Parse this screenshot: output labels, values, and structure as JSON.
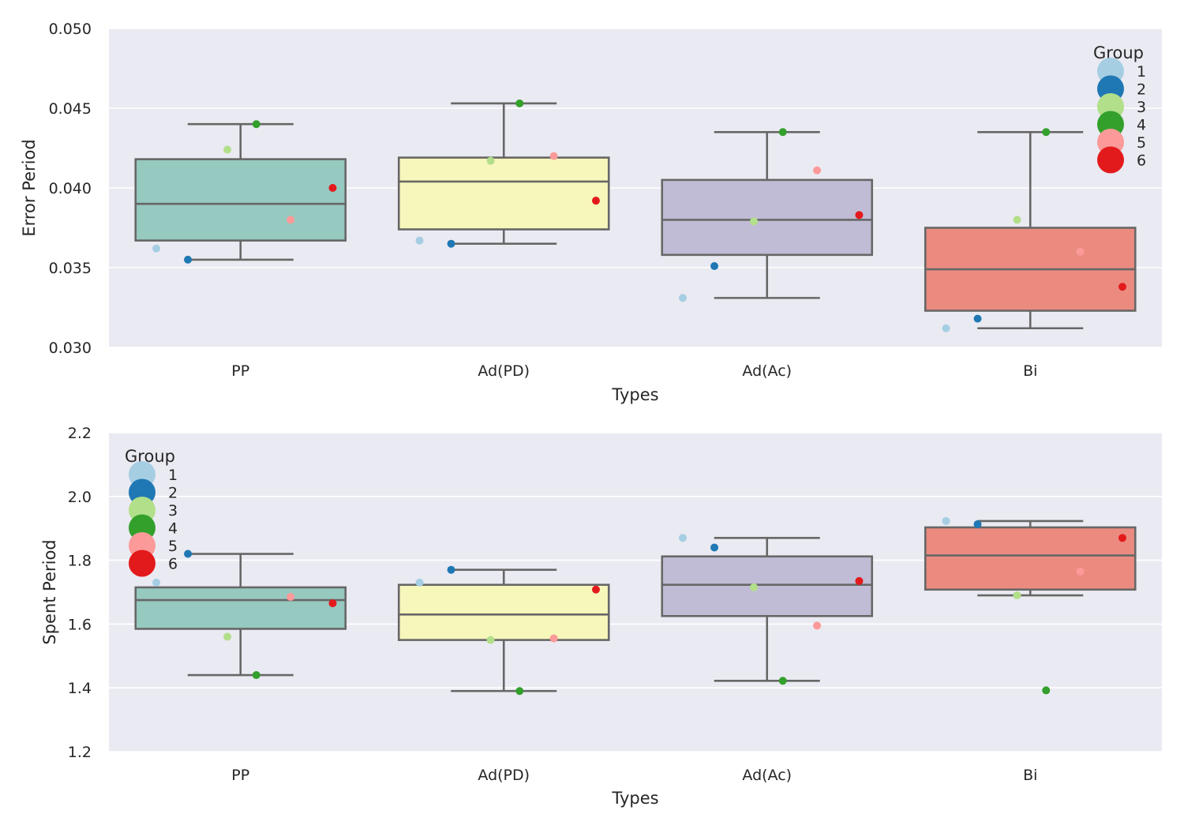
{
  "chart_data": [
    {
      "type": "box",
      "title": "",
      "xlabel": "Types",
      "ylabel": "Error Period",
      "ylim": [
        0.03,
        0.05
      ],
      "yticks": [
        "0.030",
        "0.035",
        "0.040",
        "0.045",
        "0.050"
      ],
      "categories": [
        "PP",
        "Ad(PD)",
        "Ad(Ac)",
        "Bi"
      ],
      "grid": true,
      "legend": {
        "title": "Group",
        "placement": "top-right",
        "labels": [
          "1",
          "2",
          "3",
          "4",
          "5",
          "6"
        ]
      },
      "boxes": [
        {
          "category": "PP",
          "q1": 0.0367,
          "median": 0.039,
          "q3": 0.0418,
          "whisker_low": 0.0355,
          "whisker_high": 0.044,
          "color": "#96c9c0"
        },
        {
          "category": "Ad(PD)",
          "q1": 0.0374,
          "median": 0.0404,
          "q3": 0.0419,
          "whisker_low": 0.0365,
          "whisker_high": 0.0453,
          "color": "#f7f6bb"
        },
        {
          "category": "Ad(Ac)",
          "q1": 0.0358,
          "median": 0.038,
          "q3": 0.0405,
          "whisker_low": 0.0331,
          "whisker_high": 0.0435,
          "color": "#c1bcd5"
        },
        {
          "category": "Bi",
          "q1": 0.0323,
          "median": 0.0349,
          "q3": 0.0375,
          "whisker_low": 0.0312,
          "whisker_high": 0.0435,
          "color": "#eb8b80"
        }
      ],
      "series": [
        {
          "name": "1",
          "color": "#a6cee3",
          "values": [
            0.0362,
            0.0367,
            0.0331,
            0.0312
          ]
        },
        {
          "name": "2",
          "color": "#1f78b4",
          "values": [
            0.0355,
            0.0365,
            0.0351,
            0.0318
          ]
        },
        {
          "name": "3",
          "color": "#b2df8a",
          "values": [
            0.0424,
            0.0417,
            0.0379,
            0.038
          ]
        },
        {
          "name": "4",
          "color": "#33a02c",
          "values": [
            0.044,
            0.0453,
            0.0435,
            0.0435
          ]
        },
        {
          "name": "5",
          "color": "#fb9a99",
          "values": [
            0.038,
            0.042,
            0.0411,
            0.036
          ]
        },
        {
          "name": "6",
          "color": "#e31a1c",
          "values": [
            0.04,
            0.0392,
            0.0383,
            0.0338
          ]
        }
      ],
      "jitter": [
        -0.32,
        -0.2,
        -0.05,
        0.06,
        0.19,
        0.35
      ]
    },
    {
      "type": "box",
      "title": "",
      "xlabel": "Types",
      "ylabel": "Spent Period",
      "ylim": [
        1.2,
        2.2
      ],
      "yticks": [
        "1.2",
        "1.4",
        "1.6",
        "1.8",
        "2.0",
        "2.2"
      ],
      "categories": [
        "PP",
        "Ad(PD)",
        "Ad(Ac)",
        "Bi"
      ],
      "grid": true,
      "legend": {
        "title": "Group",
        "placement": "top-left",
        "labels": [
          "1",
          "2",
          "3",
          "4",
          "5",
          "6"
        ]
      },
      "boxes": [
        {
          "category": "PP",
          "q1": 1.585,
          "median": 1.675,
          "q3": 1.715,
          "whisker_low": 1.44,
          "whisker_high": 1.82,
          "color": "#96c9c0"
        },
        {
          "category": "Ad(PD)",
          "q1": 1.55,
          "median": 1.63,
          "q3": 1.723,
          "whisker_low": 1.39,
          "whisker_high": 1.77,
          "color": "#f7f6bb"
        },
        {
          "category": "Ad(Ac)",
          "q1": 1.625,
          "median": 1.723,
          "q3": 1.812,
          "whisker_low": 1.422,
          "whisker_high": 1.87,
          "color": "#c1bcd5"
        },
        {
          "category": "Bi",
          "q1": 1.708,
          "median": 1.815,
          "q3": 1.903,
          "whisker_low": 1.69,
          "whisker_high": 1.923,
          "color": "#eb8b80"
        }
      ],
      "series": [
        {
          "name": "1",
          "color": "#a6cee3",
          "values": [
            1.73,
            1.73,
            1.87,
            1.923
          ]
        },
        {
          "name": "2",
          "color": "#1f78b4",
          "values": [
            1.82,
            1.77,
            1.84,
            1.913
          ]
        },
        {
          "name": "3",
          "color": "#b2df8a",
          "values": [
            1.56,
            1.55,
            1.715,
            1.69
          ]
        },
        {
          "name": "4",
          "color": "#33a02c",
          "values": [
            1.44,
            1.39,
            1.422,
            1.392
          ]
        },
        {
          "name": "5",
          "color": "#fb9a99",
          "values": [
            1.685,
            1.555,
            1.595,
            1.765
          ]
        },
        {
          "name": "6",
          "color": "#e31a1c",
          "values": [
            1.665,
            1.708,
            1.735,
            1.87
          ]
        }
      ],
      "jitter": [
        -0.32,
        -0.2,
        -0.05,
        0.06,
        0.19,
        0.35
      ]
    }
  ]
}
